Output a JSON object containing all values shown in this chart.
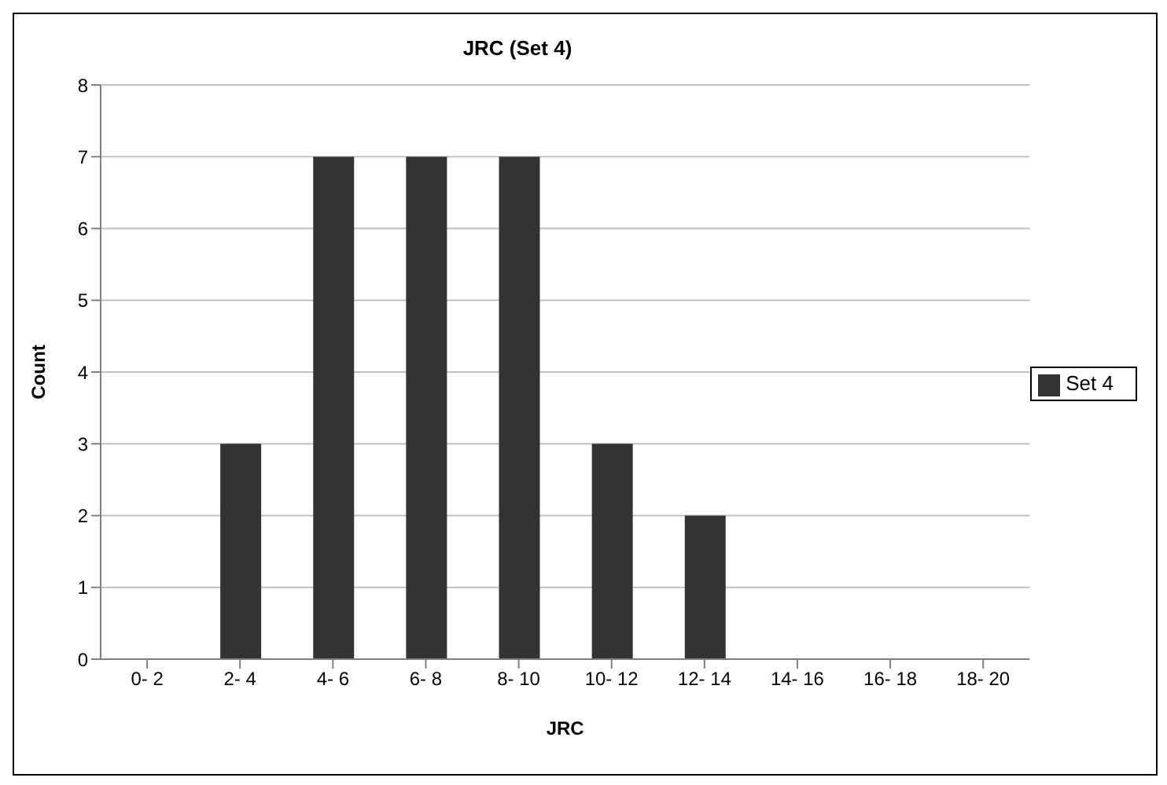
{
  "chart_data": {
    "type": "bar",
    "title": "JRC (Set 4)",
    "xlabel": "JRC",
    "ylabel": "Count",
    "categories": [
      "0- 2",
      "2- 4",
      "4- 6",
      "6- 8",
      "8- 10",
      "10- 12",
      "12- 14",
      "14- 16",
      "16- 18",
      "18- 20"
    ],
    "series": [
      {
        "name": "Set 4",
        "color": "#333333",
        "values": [
          0,
          3,
          7,
          7,
          7,
          3,
          2,
          0,
          0,
          0
        ]
      }
    ],
    "ylim": [
      0,
      8
    ],
    "yticks": [
      0,
      1,
      2,
      3,
      4,
      5,
      6,
      7,
      8
    ],
    "grid": "y",
    "legend": "right"
  }
}
